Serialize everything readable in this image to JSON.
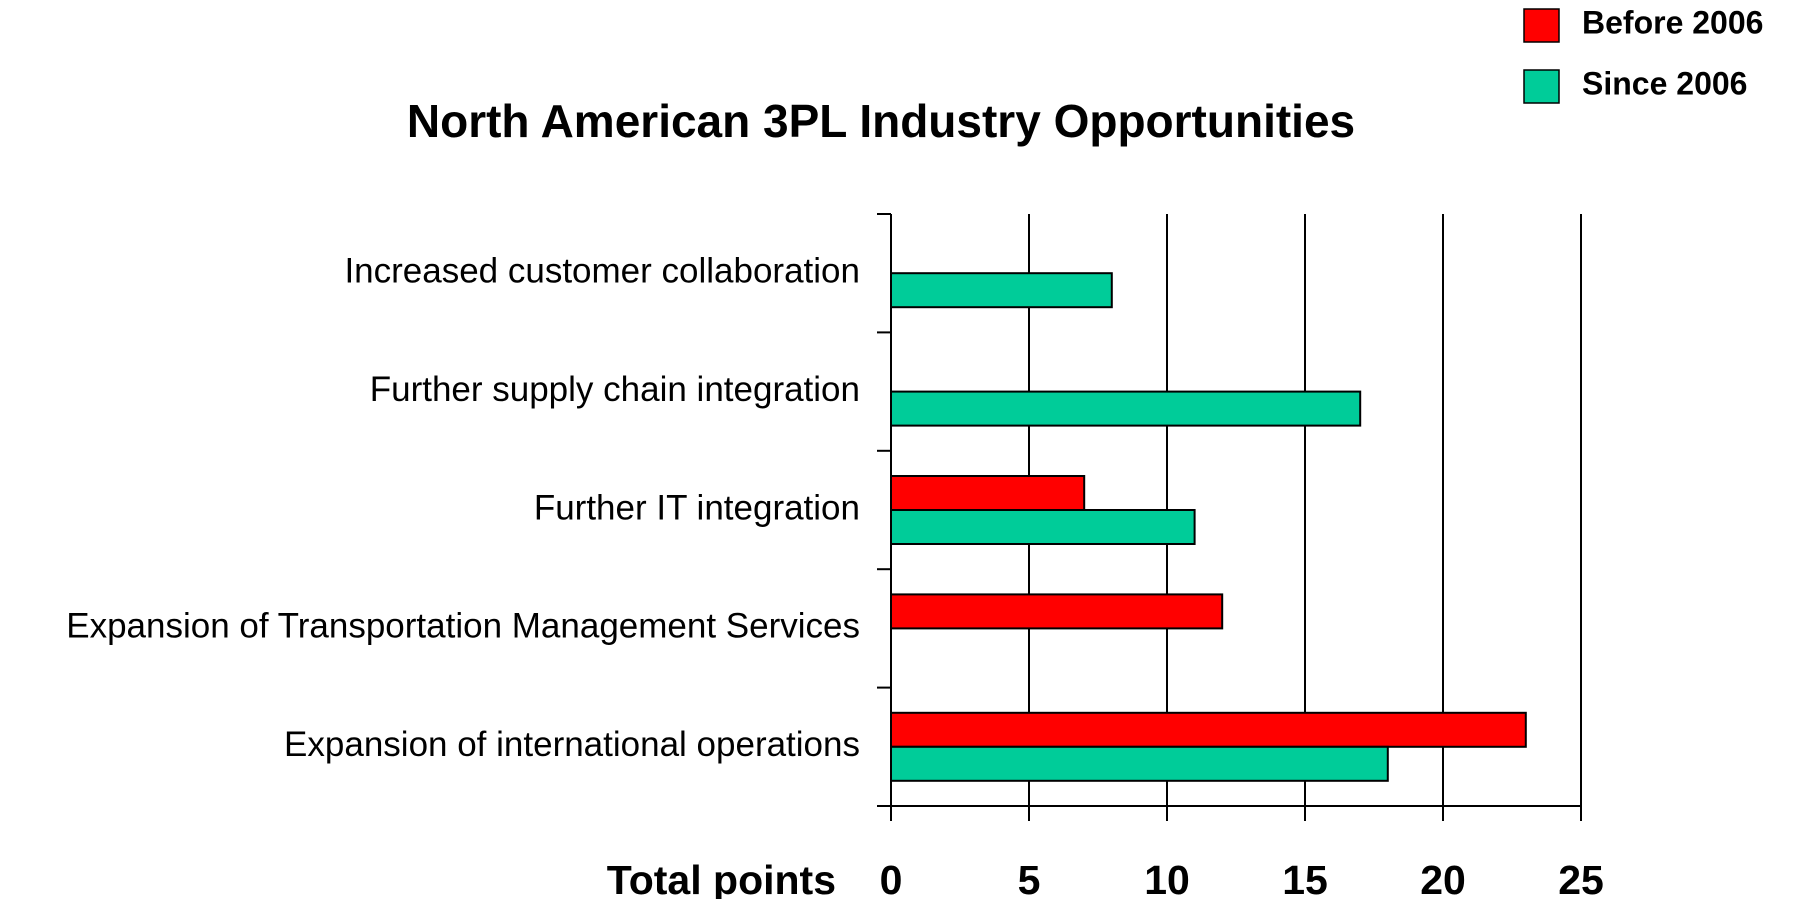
{
  "chart_data": {
    "type": "hbar",
    "title": "North American 3PL Industry Opportunities",
    "xlabel": "Total points",
    "categories": [
      "Increased customer collaboration",
      "Further supply chain integration",
      "Further IT integration",
      "Expansion of Transportation Management Services",
      "Expansion of international operations"
    ],
    "series": [
      {
        "name": "Before 2006",
        "color": "#ff0000",
        "values": [
          null,
          null,
          7,
          12,
          23
        ]
      },
      {
        "name": "Since 2006",
        "color": "#00cc99",
        "values": [
          8,
          17,
          11,
          null,
          18
        ]
      }
    ],
    "xlim": [
      0,
      25
    ],
    "xticks": [
      0,
      5,
      10,
      15,
      20,
      25
    ],
    "grid": true,
    "legend": "top-right"
  }
}
